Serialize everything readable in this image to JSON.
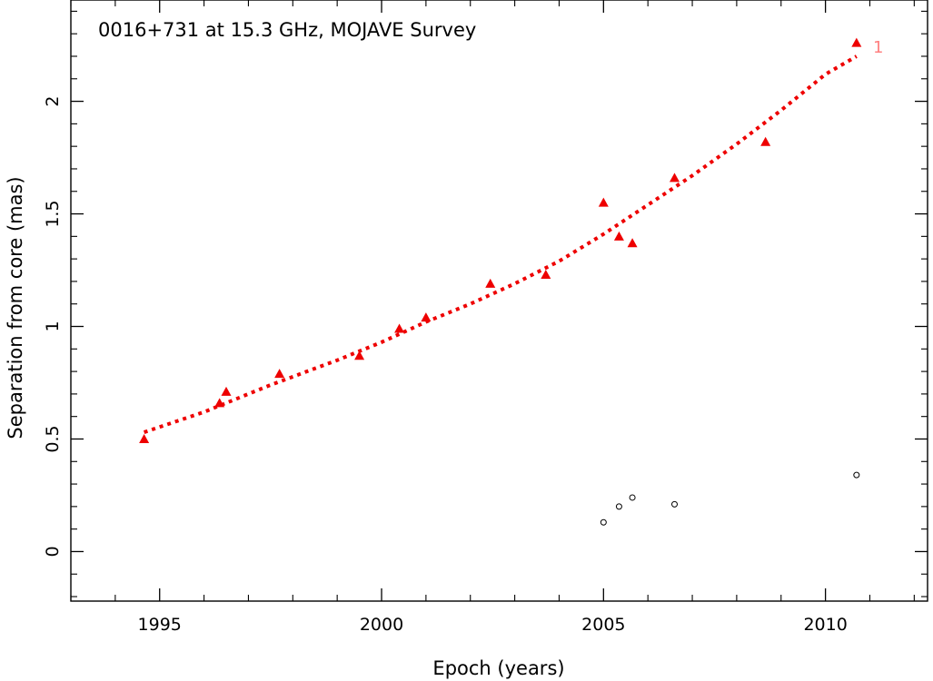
{
  "chart_data": {
    "type": "scatter",
    "title": "0016+731 at 15.3 GHz, MOJAVE Survey",
    "xlabel": "Epoch (years)",
    "ylabel": "Separation from core (mas)",
    "xlim": [
      1993.0,
      2012.3
    ],
    "ylim": [
      -0.22,
      2.45
    ],
    "xticks": [
      1995,
      2000,
      2005,
      2010
    ],
    "xtick_labels": [
      "1995",
      "2000",
      "2005",
      "2010"
    ],
    "yticks": [
      0,
      0.5,
      1,
      1.5,
      2
    ],
    "ytick_labels": [
      "0",
      "0.5",
      "1",
      "1.5",
      "2"
    ],
    "grid": false,
    "colors": {
      "component": "#ee0000",
      "fit": "#ee0000",
      "other": "#000000",
      "label": "#ff8080",
      "axis": "#000000"
    },
    "series": [
      {
        "name": "1",
        "marker": "triangle",
        "x": [
          1994.65,
          1996.35,
          1996.5,
          1997.7,
          1999.5,
          2000.4,
          2001.0,
          2002.45,
          2003.7,
          2005.0,
          2005.35,
          2005.65,
          2006.6,
          2008.65,
          2010.7
        ],
        "y": [
          0.5,
          0.66,
          0.71,
          0.79,
          0.87,
          0.99,
          1.04,
          1.19,
          1.23,
          1.55,
          1.4,
          1.37,
          1.66,
          1.82,
          2.26
        ]
      },
      {
        "marker": "circle",
        "x": [
          2005.0,
          2005.35,
          2005.65,
          2006.6,
          2010.7
        ],
        "y": [
          0.13,
          0.2,
          0.24,
          0.21,
          0.34
        ]
      }
    ],
    "fit": {
      "style": "dotted",
      "x": [
        1994.65,
        1996.0,
        1997.5,
        1999.0,
        2000.0,
        2001.0,
        2002.0,
        2003.0,
        2004.0,
        2005.0,
        2006.0,
        2007.0,
        2008.0,
        2009.0,
        2010.0,
        2010.7
      ],
      "y": [
        0.53,
        0.62,
        0.74,
        0.85,
        0.93,
        1.02,
        1.1,
        1.19,
        1.29,
        1.41,
        1.54,
        1.67,
        1.81,
        1.96,
        2.12,
        2.2
      ]
    }
  }
}
